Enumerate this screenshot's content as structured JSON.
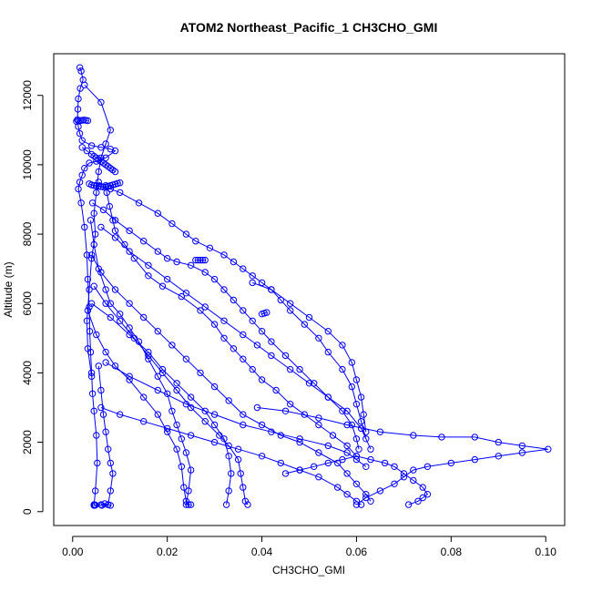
{
  "chart_data": {
    "type": "line",
    "title": "ATOM2 Northeast_Pacific_1 CH3CHO_GMI",
    "xlabel": "CH3CHO_GMI",
    "ylabel": "Altitude (m)",
    "xlim": [
      -0.004,
      0.104
    ],
    "ylim": [
      -400,
      13200
    ],
    "x_ticks": [
      0.0,
      0.02,
      0.04,
      0.06,
      0.08,
      0.1
    ],
    "x_tick_labels": [
      "0.00",
      "0.02",
      "0.04",
      "0.06",
      "0.08",
      "0.10"
    ],
    "y_ticks": [
      0,
      2000,
      4000,
      6000,
      8000,
      10000,
      12000
    ],
    "y_tick_labels": [
      "0",
      "2000",
      "4000",
      "6000",
      "8000",
      "10000",
      "12000"
    ],
    "grid": false,
    "legend": "none",
    "series": [
      {
        "color": "#0000ff",
        "marker": "open-circle",
        "x": [
          0.0015,
          0.0018,
          0.0022,
          0.0016,
          0.0012,
          0.0011,
          0.001,
          0.0012,
          0.0015,
          0.002,
          0.004,
          0.006,
          0.008,
          0.009,
          0.007,
          0.005,
          0.0035,
          0.0025,
          0.002,
          0.0015,
          0.0012,
          0.0018,
          0.0025,
          0.003,
          0.0032,
          0.0035,
          0.0036,
          0.0038,
          0.004,
          0.0042,
          0.0045,
          0.005,
          0.0052,
          0.0048,
          0.0045,
          0.0047,
          0.0045,
          0.0045,
          0.0046,
          0.0048,
          0.0062,
          0.0075,
          0.008,
          0.0068,
          0.006
        ],
        "y": [
          12800,
          12700,
          12450,
          12200,
          11900,
          11600,
          11300,
          11100,
          10900,
          10700,
          10550,
          10500,
          10450,
          10400,
          10200,
          10100,
          10050,
          9900,
          9700,
          9500,
          9300,
          8900,
          8200,
          7400,
          6700,
          5900,
          5200,
          4600,
          4000,
          3400,
          2900,
          2200,
          1400,
          600,
          180,
          180,
          200,
          190,
          185,
          190,
          180,
          200,
          180,
          230,
          200
        ]
      },
      {
        "color": "#0000ff",
        "marker": "open-circle",
        "x": [
          0.0025,
          0.006,
          0.008,
          0.007,
          0.006,
          0.0055,
          0.005,
          0.0045,
          0.0048,
          0.004,
          0.0035,
          0.003,
          0.0032,
          0.004
        ],
        "y": [
          12300,
          11800,
          11000,
          10600,
          10200,
          9800,
          9200,
          8600,
          8000,
          7300,
          6400,
          5500,
          4700,
          3900
        ]
      },
      {
        "color": "#0000ff",
        "marker": "open-circle",
        "x": [
          0.005,
          0.008,
          0.01,
          0.014,
          0.018,
          0.021,
          0.024,
          0.026,
          0.029,
          0.032,
          0.034,
          0.036,
          0.038,
          0.04,
          0.042,
          0.044,
          0.046,
          0.049,
          0.052,
          0.054,
          0.057,
          0.059,
          0.06,
          0.061,
          0.062
        ],
        "y": [
          9400,
          9300,
          9200,
          8900,
          8600,
          8300,
          8000,
          7800,
          7600,
          7400,
          7200,
          7000,
          6800,
          6600,
          6400,
          6100,
          5800,
          5400,
          5000,
          4600,
          4100,
          3600,
          3100,
          2600,
          2100
        ]
      },
      {
        "color": "#0000ff",
        "marker": "open-circle",
        "x": [
          0.0055,
          0.007,
          0.0072,
          0.0078,
          0.0085,
          0.009,
          0.011,
          0.013,
          0.016,
          0.019,
          0.023,
          0.027,
          0.03,
          0.032,
          0.034,
          0.036,
          0.038,
          0.04,
          0.043,
          0.046,
          0.049,
          0.052,
          0.055,
          0.058,
          0.06
        ],
        "y": [
          9500,
          9400,
          9200,
          8800,
          8400,
          8100,
          7700,
          7300,
          6800,
          6500,
          6200,
          5800,
          5400,
          5000,
          4700,
          4400,
          4100,
          3800,
          3500,
          3100,
          2800,
          2500,
          2200,
          1900,
          1600
        ]
      },
      {
        "color": "#0000ff",
        "marker": "open-circle",
        "x": [
          0.0042,
          0.0065,
          0.009,
          0.012,
          0.015,
          0.018,
          0.02,
          0.022,
          0.025,
          0.028,
          0.03,
          0.032,
          0.034,
          0.036,
          0.038,
          0.04,
          0.042,
          0.045,
          0.048,
          0.051,
          0.054,
          0.057,
          0.059,
          0.06,
          0.0605
        ],
        "y": [
          8900,
          8700,
          8400,
          8100,
          7800,
          7500,
          7300,
          7200,
          7100,
          6900,
          6700,
          6400,
          6100,
          5800,
          5500,
          5200,
          4900,
          4500,
          4100,
          3700,
          3300,
          2900,
          2500,
          2100,
          1800
        ]
      },
      {
        "color": "#0000ff",
        "marker": "open-circle",
        "x": [
          0.006,
          0.009,
          0.012,
          0.016,
          0.02,
          0.024,
          0.028,
          0.032,
          0.036,
          0.039,
          0.042,
          0.046,
          0.05,
          0.054,
          0.058,
          0.061,
          0.063
        ],
        "y": [
          8200,
          7900,
          7500,
          7100,
          6700,
          6300,
          5900,
          5500,
          5100,
          4800,
          4500,
          4100,
          3700,
          3300,
          2900,
          2400,
          1800
        ]
      },
      {
        "color": "#0000ff",
        "marker": "open-circle",
        "x": [
          0.0038,
          0.0045,
          0.0055,
          0.007,
          0.008,
          0.01,
          0.012,
          0.014,
          0.016,
          0.018,
          0.02,
          0.021,
          0.022,
          0.023,
          0.024,
          0.025,
          0.0245,
          0.024,
          0.025
        ],
        "y": [
          8400,
          7700,
          7000,
          6400,
          6000,
          5700,
          5300,
          4900,
          4400,
          3900,
          3400,
          2900,
          2500,
          2100,
          1700,
          1200,
          600,
          200,
          200
        ]
      },
      {
        "color": "#0000ff",
        "marker": "open-circle",
        "x": [
          0.0032,
          0.005,
          0.007,
          0.009,
          0.012,
          0.015,
          0.018,
          0.02,
          0.022,
          0.023,
          0.0235,
          0.024,
          0.0245
        ],
        "y": [
          5800,
          5100,
          4600,
          4200,
          3800,
          3300,
          2800,
          2300,
          1800,
          1300,
          700,
          300,
          200
        ]
      },
      {
        "color": "#0000ff",
        "marker": "open-circle",
        "x": [
          0.004,
          0.008,
          0.012,
          0.016,
          0.019,
          0.022,
          0.025,
          0.028,
          0.03,
          0.032,
          0.033,
          0.0335,
          0.033,
          0.0325
        ],
        "y": [
          6000,
          5600,
          5100,
          4600,
          4100,
          3700,
          3300,
          2900,
          2500,
          2100,
          1600,
          1100,
          600,
          200
        ]
      },
      {
        "color": "#0000ff",
        "marker": "open-circle",
        "x": [
          0.0045,
          0.007,
          0.01,
          0.013,
          0.016,
          0.019,
          0.022,
          0.025,
          0.028,
          0.031,
          0.033,
          0.035,
          0.0355,
          0.036,
          0.0365,
          0.037
        ],
        "y": [
          6500,
          6000,
          5500,
          5000,
          4500,
          4000,
          3500,
          3000,
          2600,
          2200,
          1900,
          1500,
          1100,
          700,
          300,
          200
        ]
      },
      {
        "color": "#0000ff",
        "marker": "open-circle",
        "x": [
          0.004,
          0.006,
          0.009,
          0.012,
          0.015,
          0.018,
          0.021,
          0.024,
          0.027,
          0.03,
          0.033,
          0.036,
          0.04,
          0.044,
          0.048,
          0.052,
          0.056,
          0.058,
          0.06,
          0.062,
          0.063
        ],
        "y": [
          7400,
          6900,
          6400,
          6000,
          5600,
          5200,
          4800,
          4400,
          4000,
          3600,
          3200,
          2800,
          2500,
          2200,
          2000,
          1700,
          1400,
          1100,
          800,
          500,
          300
        ]
      },
      {
        "color": "#0000ff",
        "marker": "open-circle",
        "x": [
          0.006,
          0.01,
          0.015,
          0.02,
          0.025,
          0.03,
          0.035,
          0.04,
          0.044,
          0.048,
          0.052,
          0.056,
          0.058,
          0.06,
          0.061
        ],
        "y": [
          3000,
          2800,
          2600,
          2400,
          2200,
          2000,
          1800,
          1600,
          1400,
          1200,
          1000,
          700,
          500,
          300,
          200
        ]
      },
      {
        "color": "#0000ff",
        "marker": "open-circle",
        "x": [
          0.007,
          0.012,
          0.018,
          0.024,
          0.03,
          0.036,
          0.042,
          0.048,
          0.054,
          0.058,
          0.06,
          0.062
        ],
        "y": [
          4300,
          3900,
          3500,
          3100,
          2800,
          2500,
          2300,
          2100,
          1900,
          1700,
          1500,
          1300
        ]
      },
      {
        "color": "#0000ff",
        "marker": "open-circle",
        "x": [
          0.0055,
          0.006,
          0.0065,
          0.007,
          0.0075,
          0.008,
          0.0085,
          0.008,
          0.0075
        ],
        "y": [
          4200,
          3500,
          2800,
          2300,
          1800,
          1400,
          1100,
          600,
          200
        ]
      },
      {
        "color": "#0000ff",
        "marker": "open-circle",
        "x": [
          0.039,
          0.045,
          0.052,
          0.058,
          0.065,
          0.072,
          0.078,
          0.085,
          0.09,
          0.095,
          0.1005,
          0.095,
          0.09,
          0.085,
          0.08,
          0.075,
          0.072,
          0.07,
          0.068,
          0.065,
          0.062,
          0.06
        ],
        "y": [
          3000,
          2900,
          2700,
          2500,
          2300,
          2200,
          2150,
          2150,
          2000,
          1900,
          1800,
          1700,
          1600,
          1500,
          1400,
          1300,
          1200,
          1000,
          800,
          600,
          400,
          200
        ]
      },
      {
        "color": "#0000ff",
        "marker": "open-circle",
        "x": [
          0.045,
          0.048,
          0.051,
          0.054,
          0.057,
          0.06,
          0.063,
          0.066,
          0.068,
          0.07,
          0.072,
          0.074,
          0.075,
          0.074,
          0.073,
          0.071
        ],
        "y": [
          1100,
          1200,
          1300,
          1400,
          1500,
          1600,
          1500,
          1400,
          1300,
          1100,
          900,
          700,
          500,
          400,
          300,
          200
        ]
      },
      {
        "color": "#0000ff",
        "marker": "open-circle",
        "x": [
          0.038,
          0.042,
          0.046,
          0.05,
          0.054,
          0.057,
          0.059,
          0.06,
          0.061,
          0.0615,
          0.062
        ],
        "y": [
          6600,
          6400,
          6000,
          5600,
          5200,
          4800,
          4300,
          3800,
          3300,
          2800,
          2300
        ]
      },
      {
        "color": "#0000ff",
        "marker": "open-circle",
        "x": [
          0.002,
          0.003,
          0.004,
          0.0045,
          0.005,
          0.0055,
          0.006,
          0.0065,
          0.007,
          0.0075,
          0.008,
          0.0085,
          0.009
        ],
        "y": [
          10500,
          10400,
          10300,
          10250,
          10200,
          10150,
          10100,
          10050,
          10000,
          9950,
          9900,
          9850,
          9800
        ]
      },
      {
        "color": "#0000ff",
        "marker": "open-circle",
        "x": [
          0.0035,
          0.004,
          0.0045,
          0.005,
          0.0055,
          0.006,
          0.0065,
          0.007,
          0.0075,
          0.008,
          0.0085,
          0.009,
          0.0095,
          0.01
        ],
        "y": [
          9450,
          9420,
          9400,
          9390,
          9380,
          9370,
          9360,
          9360,
          9380,
          9400,
          9420,
          9440,
          9460,
          9480
        ]
      },
      {
        "color": "#0000ff",
        "marker": "open-circle",
        "x": [
          0.0008,
          0.0012,
          0.0016,
          0.002,
          0.0024,
          0.0028,
          0.0032
        ],
        "y": [
          11250,
          11260,
          11270,
          11280,
          11290,
          11280,
          11270
        ]
      },
      {
        "color": "#0000ff",
        "marker": "open-circle",
        "x": [
          0.026,
          0.0265,
          0.027,
          0.0275,
          0.028
        ],
        "y": [
          7250,
          7250,
          7250,
          7250,
          7250
        ]
      },
      {
        "color": "#0000ff",
        "marker": "open-circle",
        "x": [
          0.04,
          0.0405,
          0.041
        ],
        "y": [
          5700,
          5720,
          5740
        ]
      }
    ]
  }
}
